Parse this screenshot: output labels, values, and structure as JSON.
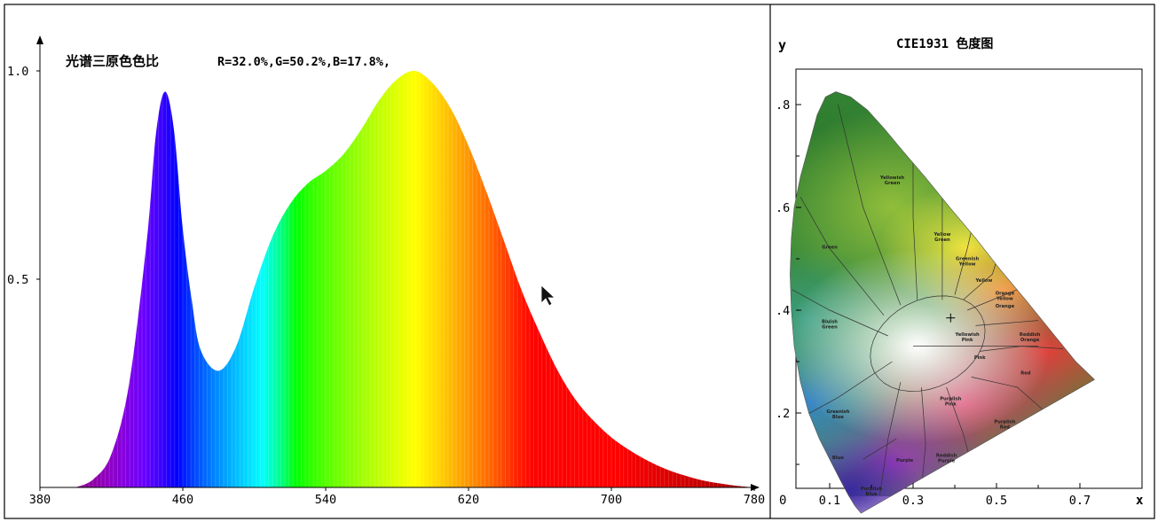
{
  "spectrum": {
    "title_cn": "光谱三原色色比",
    "ratio_text": "R=32.0%,G=50.2%,B=17.8%,",
    "ratios": {
      "R": 32.0,
      "G": 50.2,
      "B": 17.8
    },
    "y_ticks": [
      "1.0",
      "0.5"
    ],
    "x_ticks": [
      "380",
      "460",
      "540",
      "620",
      "700",
      "780"
    ]
  },
  "cie": {
    "title": "CIE1931 色度图",
    "y_axis_label": "y",
    "x_axis_label": "x",
    "origin_label": "0",
    "y_ticks": [
      ".8",
      ".6",
      ".4",
      ".2"
    ],
    "x_ticks": [
      "0.1",
      "0.3",
      "0.5",
      "0.7"
    ],
    "regions": [
      {
        "name": "Green",
        "lines": [
          "Green"
        ]
      },
      {
        "name": "Yellowish Green",
        "lines": [
          "Yellowish",
          "Green"
        ]
      },
      {
        "name": "Yellow Green",
        "lines": [
          "Yellow",
          "Green"
        ]
      },
      {
        "name": "Greenish Yellow",
        "lines": [
          "Greenish",
          "Yellow"
        ]
      },
      {
        "name": "Yellow",
        "lines": [
          "Yellow"
        ]
      },
      {
        "name": "Orange Yellow",
        "lines": [
          "Orange",
          "Yellow"
        ]
      },
      {
        "name": "Orange",
        "lines": [
          "Orange"
        ]
      },
      {
        "name": "Bluish Green",
        "lines": [
          "Bluish",
          "Green"
        ]
      },
      {
        "name": "Yellowish Pink",
        "lines": [
          "Yellowish",
          "Pink"
        ]
      },
      {
        "name": "Reddish Orange",
        "lines": [
          "Reddish",
          "Orange"
        ]
      },
      {
        "name": "Pink",
        "lines": [
          "Pink"
        ]
      },
      {
        "name": "Red",
        "lines": [
          "Red"
        ]
      },
      {
        "name": "Greenish Blue",
        "lines": [
          "Greenish",
          "Blue"
        ]
      },
      {
        "name": "Purplish Pink",
        "lines": [
          "Purplish",
          "Pink"
        ]
      },
      {
        "name": "Purplish Red",
        "lines": [
          "Purplish",
          "Red"
        ]
      },
      {
        "name": "Blue",
        "lines": [
          "Blue"
        ]
      },
      {
        "name": "Purple",
        "lines": [
          "Purple"
        ]
      },
      {
        "name": "Reddish Purple",
        "lines": [
          "Reddish",
          "Purple"
        ]
      },
      {
        "name": "Purplish Blue",
        "lines": [
          "Purplish",
          "Blue"
        ]
      }
    ],
    "chromaticity_point": {
      "x": 0.39,
      "y": 0.385
    }
  },
  "chart_data": [
    {
      "type": "area",
      "x": [
        400,
        410,
        420,
        430,
        440,
        445,
        450,
        455,
        460,
        465,
        470,
        480,
        490,
        500,
        510,
        520,
        530,
        540,
        550,
        560,
        570,
        580,
        590,
        600,
        610,
        620,
        630,
        640,
        650,
        660,
        670,
        680,
        690,
        700,
        710,
        720,
        730,
        740,
        750,
        760,
        770,
        780
      ],
      "y": [
        0.0,
        0.02,
        0.08,
        0.25,
        0.6,
        0.85,
        0.95,
        0.86,
        0.62,
        0.45,
        0.33,
        0.28,
        0.34,
        0.48,
        0.6,
        0.68,
        0.73,
        0.76,
        0.8,
        0.86,
        0.93,
        0.98,
        1.0,
        0.97,
        0.91,
        0.82,
        0.71,
        0.59,
        0.47,
        0.37,
        0.28,
        0.21,
        0.16,
        0.12,
        0.09,
        0.065,
        0.045,
        0.03,
        0.018,
        0.01,
        0.004,
        0.0
      ],
      "title": "光谱三原色色比",
      "ratios": {
        "R": 32.0,
        "G": 50.2,
        "B": 17.8
      },
      "xlim": [
        380,
        780
      ],
      "ylim": [
        0,
        1.0
      ],
      "x_ticks": [
        380,
        460,
        540,
        620,
        700,
        780
      ],
      "y_ticks": [
        0.5,
        1.0
      ],
      "grid": false,
      "fill": "spectral"
    },
    {
      "type": "scatter",
      "title": "CIE1931 色度图",
      "xlabel": "x",
      "ylabel": "y",
      "xlim": [
        0,
        0.8
      ],
      "ylim": [
        0,
        0.9
      ],
      "x_ticks": [
        0.1,
        0.3,
        0.5,
        0.7
      ],
      "y_ticks": [
        0.2,
        0.4,
        0.6,
        0.8
      ],
      "points": [
        {
          "x": 0.39,
          "y": 0.385
        }
      ],
      "grid": false
    }
  ]
}
